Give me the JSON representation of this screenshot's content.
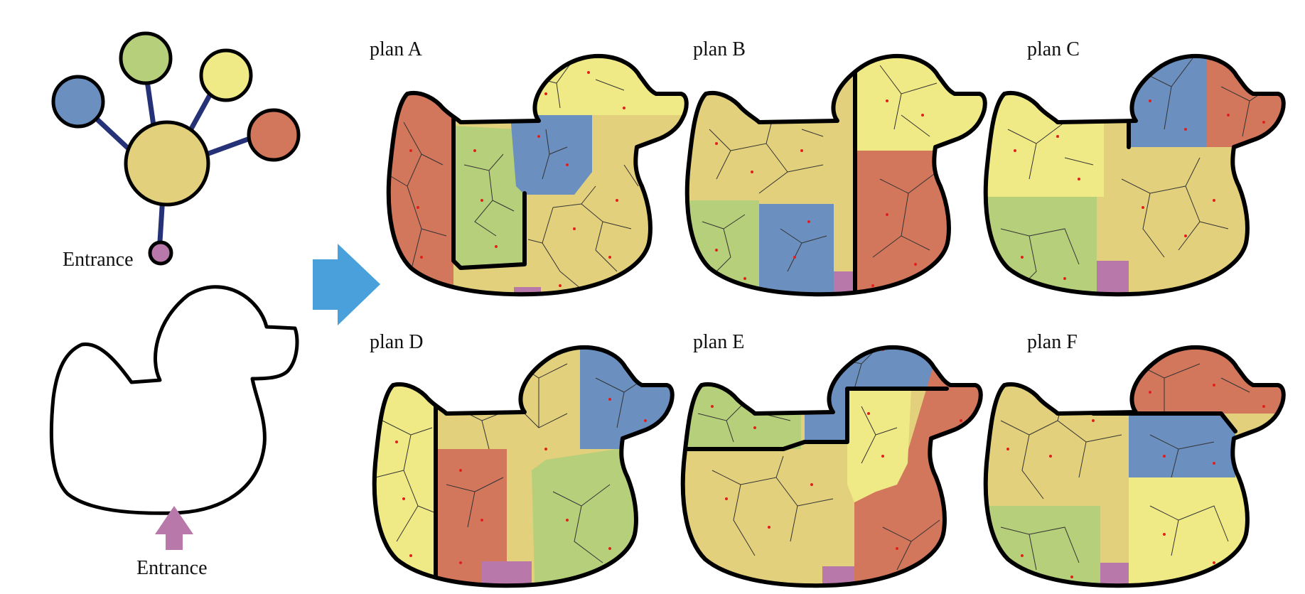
{
  "colors": {
    "blue": "#6b8fbf",
    "green": "#b6cf7a",
    "yellow": "#f0ea86",
    "orange": "#d2765c",
    "mustard": "#e3d07c",
    "pink": "#b978aa",
    "edge": "#263278",
    "arrow_blue": "#4aa0da",
    "arrow_pink": "#b978aa",
    "sample_dot": "#e0201b"
  },
  "graph": {
    "entrance_label": "Entrance",
    "nodes": [
      "blue",
      "green",
      "yellow",
      "orange",
      "mustard",
      "pink"
    ]
  },
  "outline": {
    "entrance_label": "Entrance"
  },
  "plans": [
    {
      "label": "plan A"
    },
    {
      "label": "plan B"
    },
    {
      "label": "plan C"
    },
    {
      "label": "plan D"
    },
    {
      "label": "plan E"
    },
    {
      "label": "plan F"
    }
  ]
}
